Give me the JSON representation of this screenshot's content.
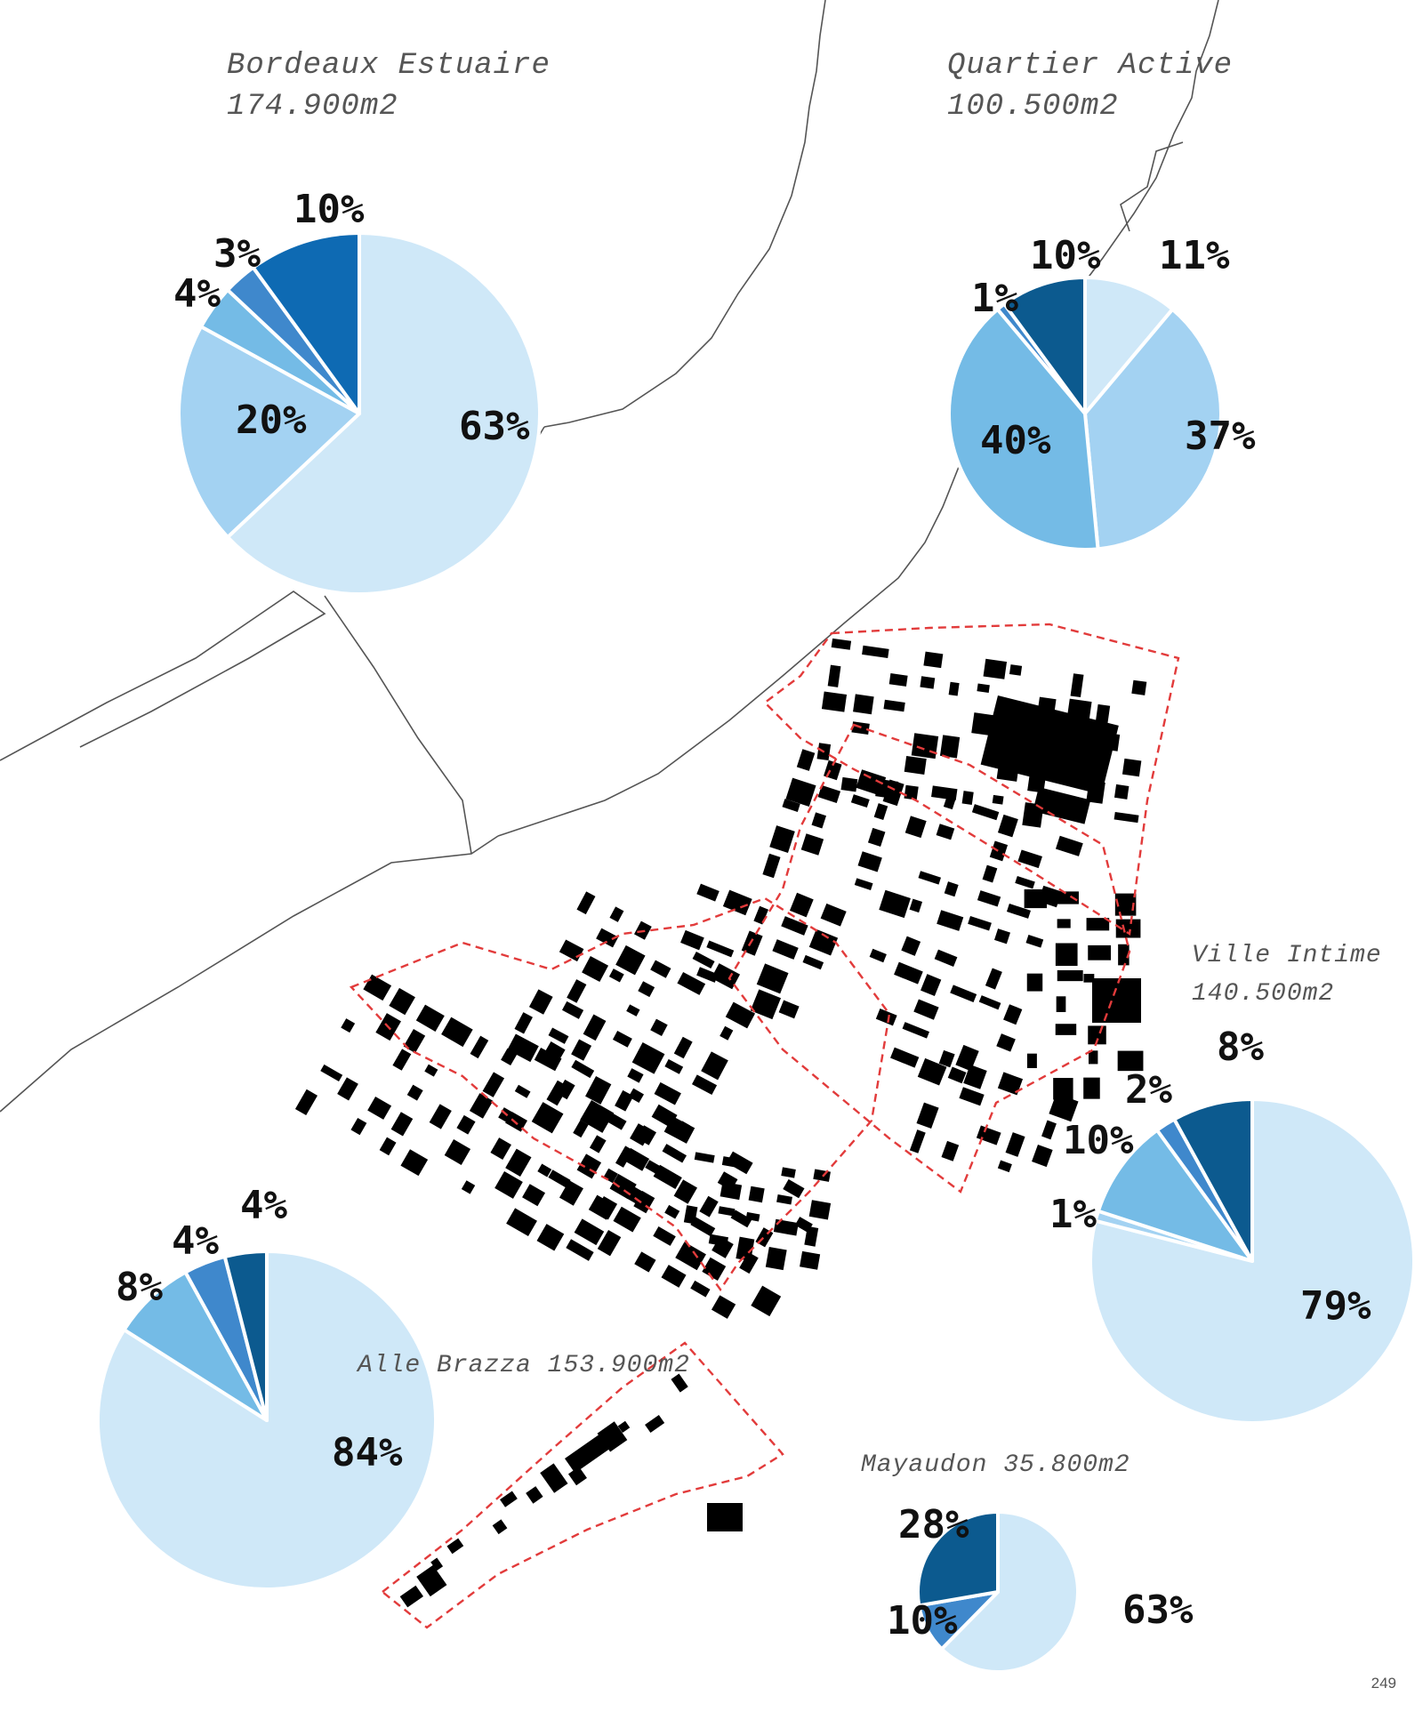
{
  "colors": {
    "slice_1": "#cfe8f8",
    "slice_2": "#a3d2f2",
    "slice_3": "#74bbe6",
    "slice_4": "#3f88cc",
    "slice_5": "#0e6ab3",
    "slice_6": "#0c5a8f",
    "block": "#000000",
    "boundary": "#e23b3b",
    "river_line": "#555555"
  },
  "zones": [
    {
      "id": "bordeaux-estuaire",
      "name": "Bordeaux Estuaire",
      "area": "174.900m2",
      "slices": [
        {
          "value": 63,
          "label": "63%",
          "color": "#cfe8f8"
        },
        {
          "value": 20,
          "label": "20%",
          "color": "#a3d2f2"
        },
        {
          "value": 4,
          "label": "4%",
          "color": "#74bbe6"
        },
        {
          "value": 3,
          "label": "3%",
          "color": "#3f88cc"
        },
        {
          "value": 10,
          "label": "10%",
          "color": "#0e6ab3"
        }
      ]
    },
    {
      "id": "quartier-active",
      "name": "Quartier Active",
      "area": "100.500m2",
      "slices": [
        {
          "value": 11,
          "label": "11%",
          "color": "#cfe8f8"
        },
        {
          "value": 37,
          "label": "37%",
          "color": "#a3d2f2"
        },
        {
          "value": 40,
          "label": "40%",
          "color": "#74bbe6"
        },
        {
          "value": 1,
          "label": "1%",
          "color": "#3f88cc"
        },
        {
          "value": 10,
          "label": "10%",
          "color": "#0c5a8f"
        }
      ]
    },
    {
      "id": "ville-intime",
      "name": "Ville Intime",
      "area": "140.500m2",
      "slices": [
        {
          "value": 79,
          "label": "79%",
          "color": "#cfe8f8"
        },
        {
          "value": 1,
          "label": "1%",
          "color": "#a3d2f2"
        },
        {
          "value": 10,
          "label": "10%",
          "color": "#74bbe6"
        },
        {
          "value": 2,
          "label": "2%",
          "color": "#3f88cc"
        },
        {
          "value": 8,
          "label": "8%",
          "color": "#0c5a8f"
        }
      ]
    },
    {
      "id": "alle-brazza",
      "name": "Alle Brazza",
      "area": "153.900m2",
      "slices": [
        {
          "value": 84,
          "label": "84%",
          "color": "#cfe8f8"
        },
        {
          "value": 8,
          "label": "8%",
          "color": "#74bbe6"
        },
        {
          "value": 4,
          "label": "4%",
          "color": "#3f88cc"
        },
        {
          "value": 4,
          "label": "4%",
          "color": "#0c5a8f"
        }
      ]
    },
    {
      "id": "mayaudon",
      "name": "Mayaudon",
      "area": "35.800m2",
      "slices": [
        {
          "value": 63,
          "label": "63%",
          "color": "#cfe8f8"
        },
        {
          "value": 10,
          "label": "10%",
          "color": "#3f88cc"
        },
        {
          "value": 28,
          "label": "28%",
          "color": "#0c5a8f"
        }
      ]
    }
  ],
  "page_number": "249"
}
